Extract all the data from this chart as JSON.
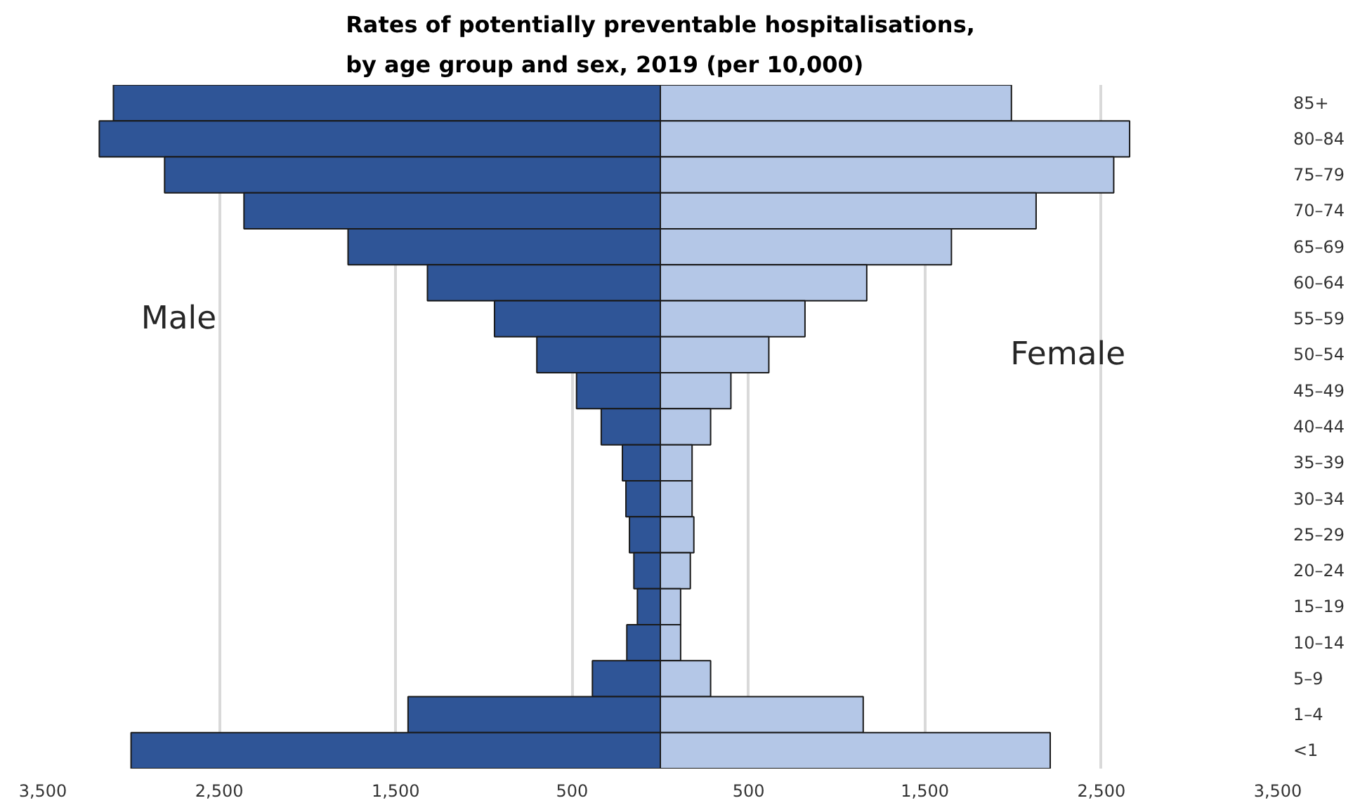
{
  "chart_data": {
    "type": "bar",
    "orientation": "horizontal",
    "stacked": true,
    "title": "Rates of potentially preventable hospitalisations,\nby age group and sex, 2019 (per 10,000)",
    "categories": [
      "85+",
      "80–84",
      "75–79",
      "70–74",
      "65–69",
      "60–64",
      "55–59",
      "50–54",
      "45–49",
      "40–44",
      "35–39",
      "30–34",
      "25–29",
      "20–24",
      "15–19",
      "10–14",
      "5–9",
      "1–4",
      "<1"
    ],
    "series": [
      {
        "name": "Male",
        "color": "#2f5597",
        "values": [
          -3100,
          -3180,
          -2810,
          -2360,
          -1770,
          -1320,
          -940,
          -700,
          -475,
          -335,
          -215,
          -195,
          -175,
          -150,
          -130,
          -190,
          -385,
          -1430,
          -3000
        ]
      },
      {
        "name": "Female",
        "color": "#b4c7e7",
        "values": [
          1990,
          2660,
          2570,
          2130,
          1650,
          1170,
          820,
          615,
          400,
          285,
          180,
          180,
          190,
          170,
          115,
          115,
          285,
          1150,
          2210
        ]
      }
    ],
    "xlim": [
      -3500,
      3500
    ],
    "xticks": [
      {
        "value": -3500,
        "label": "3,500"
      },
      {
        "value": -2500,
        "label": "2,500"
      },
      {
        "value": -1500,
        "label": "1,500"
      },
      {
        "value": -500,
        "label": "500"
      },
      {
        "value": 500,
        "label": "500"
      },
      {
        "value": 1500,
        "label": "1,500"
      },
      {
        "value": 2500,
        "label": "2,500"
      },
      {
        "value": 3500,
        "label": "3,500"
      }
    ],
    "grid": "x"
  }
}
